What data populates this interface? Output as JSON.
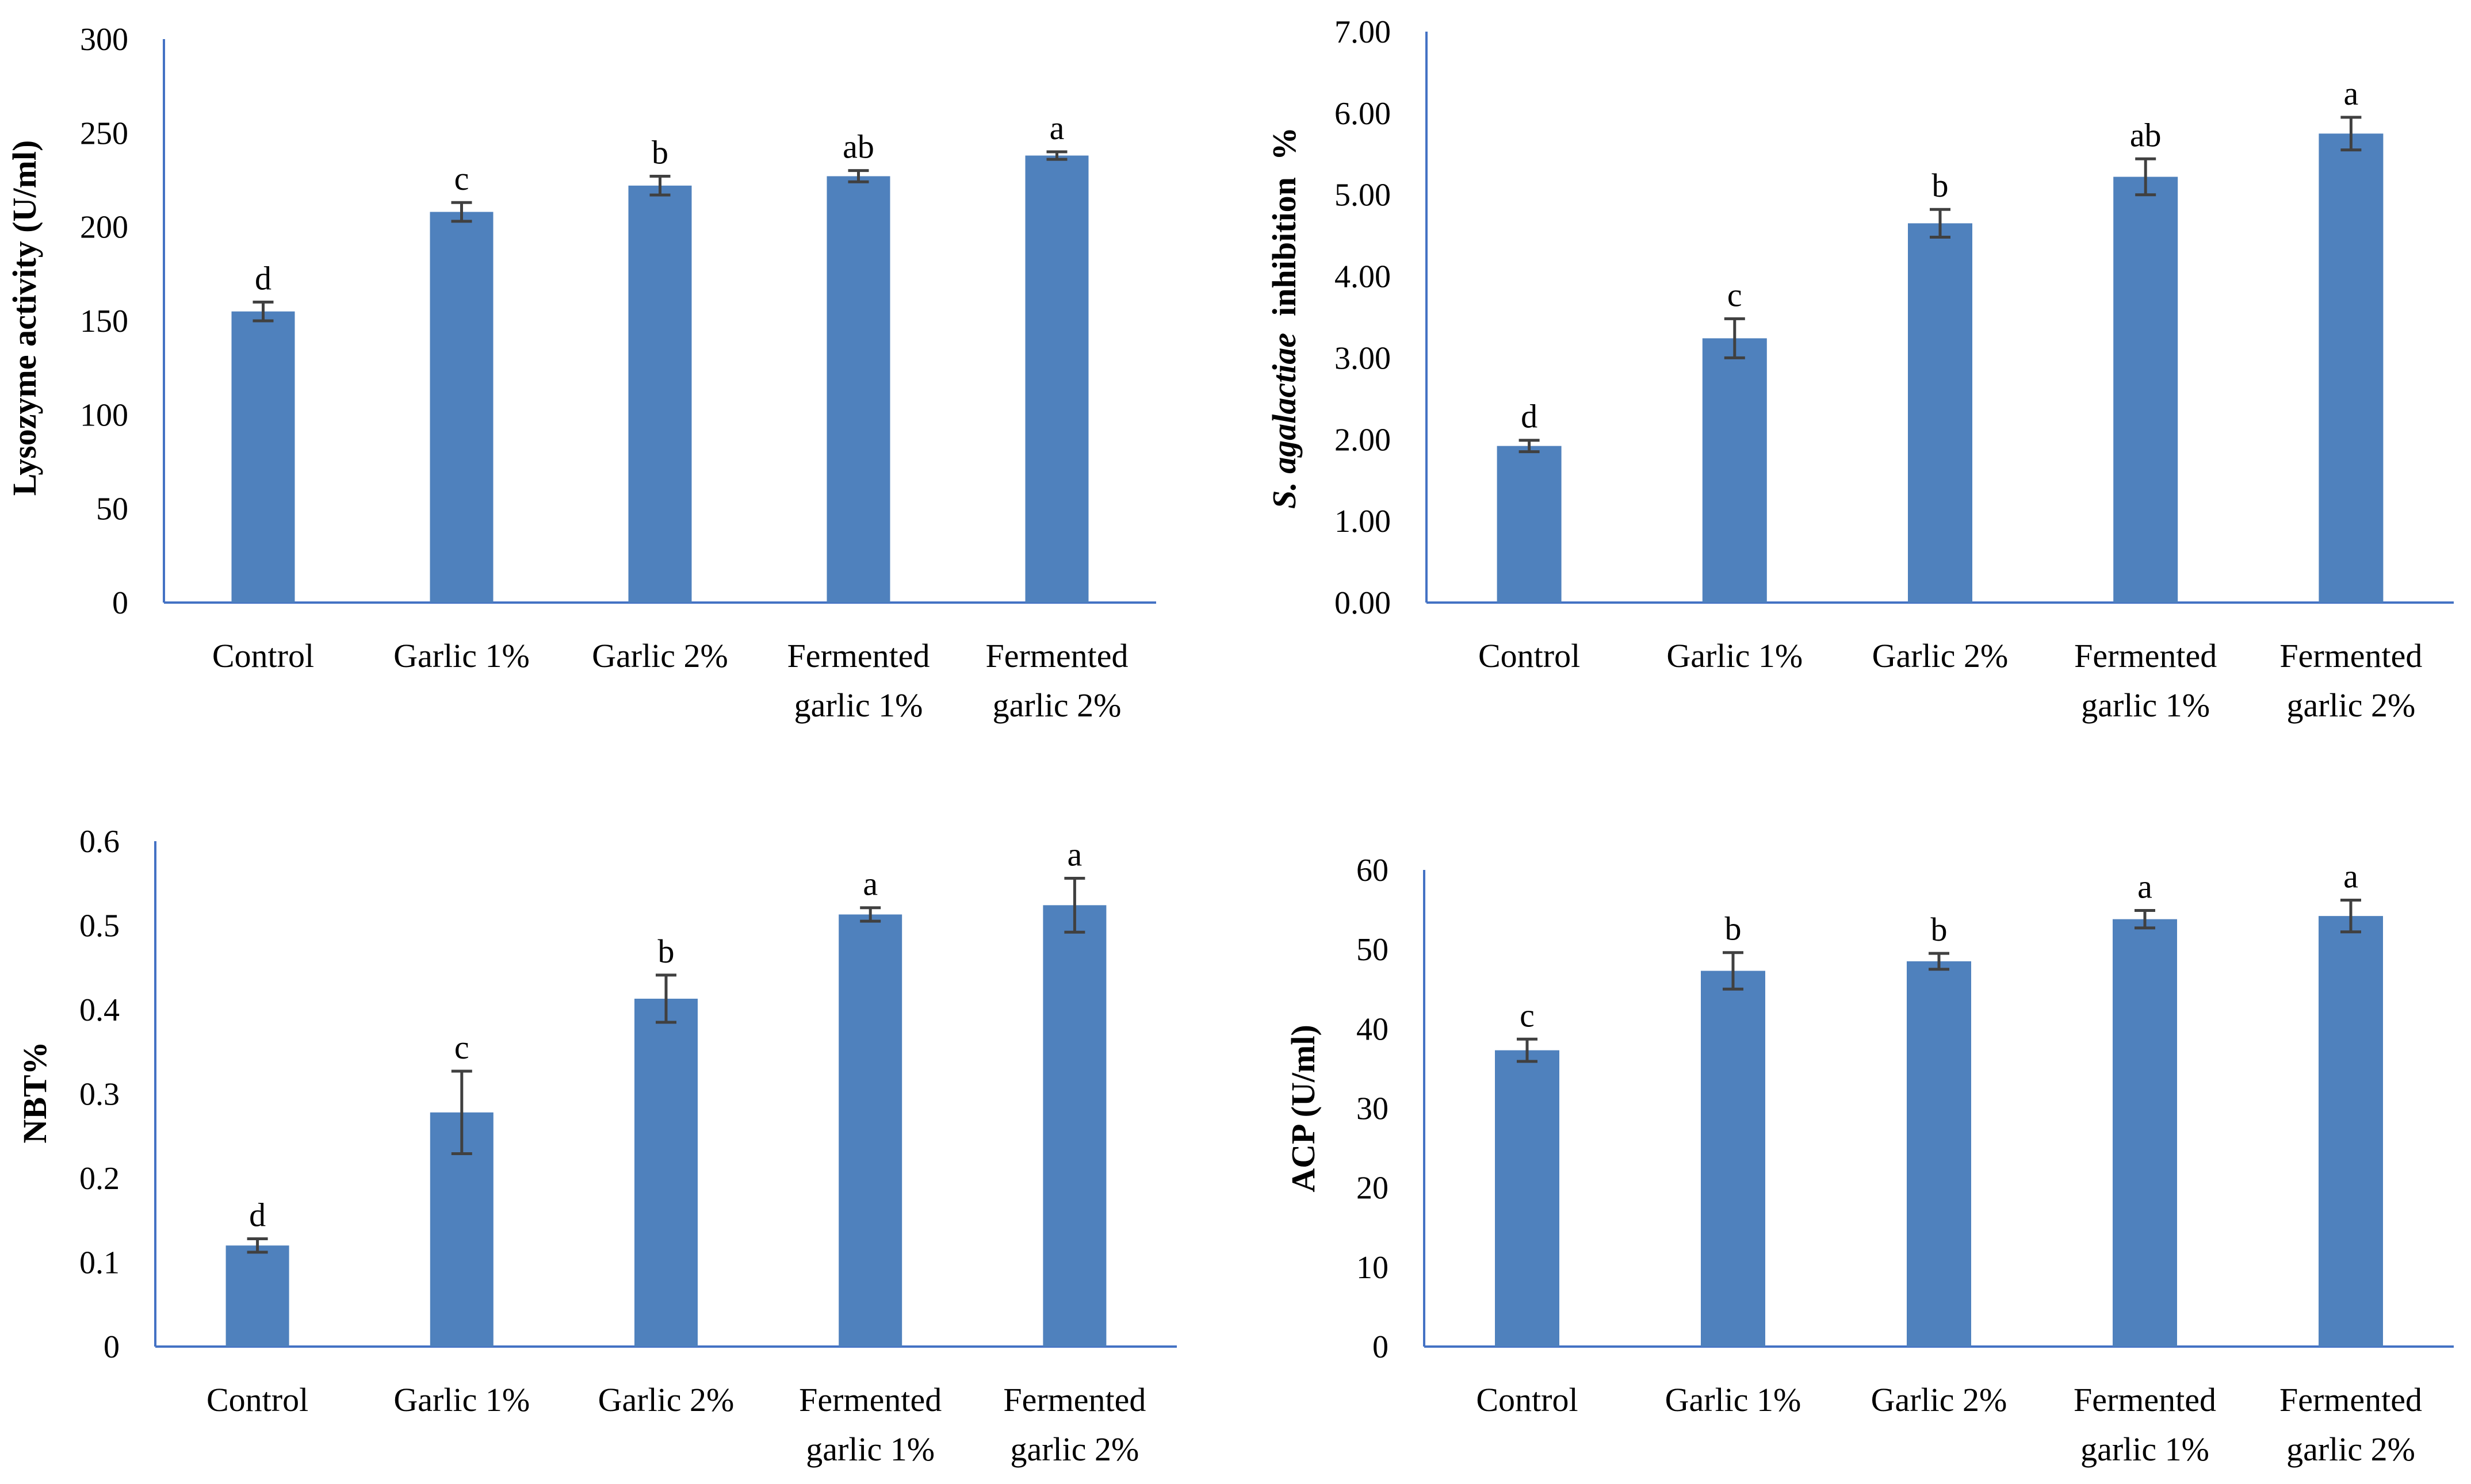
{
  "colors": {
    "bar": "#4F81BD",
    "axis": "#4472C4",
    "errbar": "#404040",
    "text": "#000000"
  },
  "chart_data": [
    {
      "type": "bar",
      "title": "",
      "ylabel": "Lysozyme activity (U/ml)",
      "categories": [
        "Control",
        "Garlic 1%",
        "Garlic 2%",
        "Fermented garlic 1%",
        "Fermented garlic 2%"
      ],
      "category_lines": [
        [
          "Control"
        ],
        [
          "Garlic 1%"
        ],
        [
          "Garlic 2%"
        ],
        [
          "Fermented",
          "garlic 1%"
        ],
        [
          "Fermented",
          "garlic 2%"
        ]
      ],
      "values": [
        155,
        208,
        222,
        227,
        238
      ],
      "errors": [
        5,
        5,
        5,
        3,
        2
      ],
      "significance": [
        "d",
        "c",
        "b",
        "ab",
        "a"
      ],
      "ylim": [
        0,
        300
      ],
      "yticks": [
        0,
        50,
        100,
        150,
        200,
        250,
        300
      ],
      "ytick_labels": [
        "0",
        "50",
        "100",
        "150",
        "200",
        "250",
        "300"
      ],
      "grid": false
    },
    {
      "type": "bar",
      "title": "",
      "ylabel_parts": [
        {
          "text": "S. agalactiae",
          "italic": true
        },
        {
          "text": "  inhibition  %",
          "italic": false
        }
      ],
      "categories": [
        "Control",
        "Garlic 1%",
        "Garlic 2%",
        "Fermented garlic 1%",
        "Fermented garlic 2%"
      ],
      "category_lines": [
        [
          "Control"
        ],
        [
          "Garlic 1%"
        ],
        [
          "Garlic 2%"
        ],
        [
          "Fermented",
          "garlic 1%"
        ],
        [
          "Fermented",
          "garlic 2%"
        ]
      ],
      "values": [
        1.92,
        3.24,
        4.65,
        5.22,
        5.75
      ],
      "errors": [
        0.07,
        0.24,
        0.17,
        0.22,
        0.2
      ],
      "significance": [
        "d",
        "c",
        "b",
        "ab",
        "a"
      ],
      "ylim": [
        0,
        7
      ],
      "yticks": [
        0,
        1,
        2,
        3,
        4,
        5,
        6,
        7
      ],
      "ytick_labels": [
        "0.00",
        "1.00",
        "2.00",
        "3.00",
        "4.00",
        "5.00",
        "6.00",
        "7.00"
      ],
      "grid": false
    },
    {
      "type": "bar",
      "title": "",
      "ylabel": "NBT%",
      "categories": [
        "Control",
        "Garlic 1%",
        "Garlic 2%",
        "Fermented garlic 1%",
        "Fermented garlic 2%"
      ],
      "category_lines": [
        [
          "Control"
        ],
        [
          "Garlic 1%"
        ],
        [
          "Garlic 2%"
        ],
        [
          "Fermented",
          "garlic 1%"
        ],
        [
          "Fermented",
          "garlic 2%"
        ]
      ],
      "values": [
        0.12,
        0.278,
        0.413,
        0.513,
        0.524
      ],
      "errors": [
        0.008,
        0.049,
        0.028,
        0.008,
        0.032
      ],
      "significance": [
        "d",
        "c",
        "b",
        "a",
        "a"
      ],
      "ylim": [
        0,
        0.6
      ],
      "yticks": [
        0,
        0.1,
        0.2,
        0.3,
        0.4,
        0.5,
        0.6
      ],
      "ytick_labels": [
        "0",
        "0.1",
        "0.2",
        "0.3",
        "0.4",
        "0.5",
        "0.6"
      ],
      "grid": false
    },
    {
      "type": "bar",
      "title": "",
      "ylabel": "ACP (U/ml)",
      "categories": [
        "Control",
        "Garlic 1%",
        "Garlic 2%",
        "Fermented garlic 1%",
        "Fermented garlic 2%"
      ],
      "category_lines": [
        [
          "Control"
        ],
        [
          "Garlic 1%"
        ],
        [
          "Garlic 2%"
        ],
        [
          "Fermented",
          "garlic 1%"
        ],
        [
          "Fermented",
          "garlic 2%"
        ]
      ],
      "values": [
        37.3,
        47.3,
        48.5,
        53.8,
        54.2
      ],
      "errors": [
        1.4,
        2.3,
        1.0,
        1.1,
        2.0
      ],
      "significance": [
        "c",
        "b",
        "b",
        "a",
        "a"
      ],
      "ylim": [
        0,
        60
      ],
      "yticks": [
        0,
        10,
        20,
        30,
        40,
        50,
        60
      ],
      "ytick_labels": [
        "0",
        "10",
        "20",
        "30",
        "40",
        "50",
        "60"
      ],
      "grid": false
    }
  ]
}
